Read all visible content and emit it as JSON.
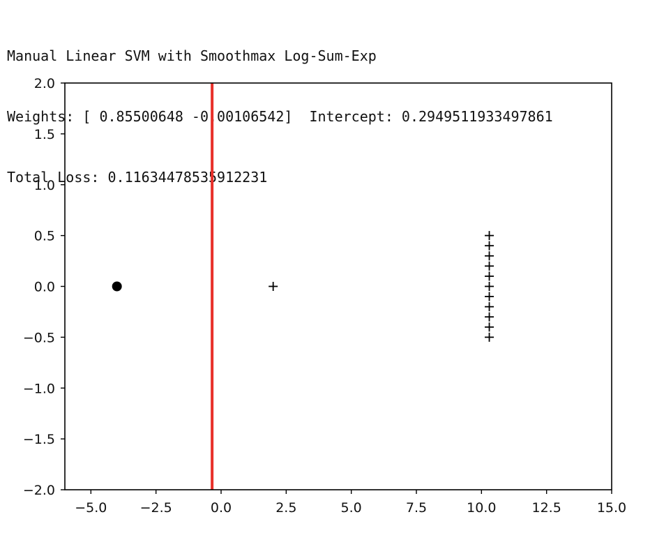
{
  "header": {
    "title": "Manual Linear SVM with Smoothmax Log-Sum-Exp",
    "weights_line": "Weights: [ 0.85500648 -0.00106542]  Intercept: 0.2949511933497861",
    "loss_line": "Total Loss: 0.11634478535912231"
  },
  "chart_data": {
    "type": "scatter",
    "title": "Manual Linear SVM with Smoothmax Log-Sum-Exp",
    "xlabel": "",
    "ylabel": "",
    "xlim": [
      -6,
      15
    ],
    "ylim": [
      -2,
      2
    ],
    "grid": false,
    "x_ticks": [
      -5.0,
      -2.5,
      0.0,
      2.5,
      5.0,
      7.5,
      10.0,
      12.5,
      15.0
    ],
    "x_tick_labels": [
      "−5.0",
      "−2.5",
      "0.0",
      "2.5",
      "5.0",
      "7.5",
      "10.0",
      "12.5",
      "15.0"
    ],
    "y_ticks": [
      -2.0,
      -1.5,
      -1.0,
      -0.5,
      0.0,
      0.5,
      1.0,
      1.5,
      2.0
    ],
    "y_tick_labels": [
      "−2.0",
      "−1.5",
      "−1.0",
      "−0.5",
      "0.0",
      "0.5",
      "1.0",
      "1.5",
      "2.0"
    ],
    "series": [
      {
        "marker": "circle",
        "color": "#000000",
        "points": [
          [
            -4.0,
            0.0
          ]
        ]
      },
      {
        "marker": "plus",
        "color": "#000000",
        "points": [
          [
            2.0,
            0.0
          ],
          [
            10.3,
            0.5
          ],
          [
            10.3,
            0.4
          ],
          [
            10.3,
            0.3
          ],
          [
            10.3,
            0.2
          ],
          [
            10.3,
            0.1
          ],
          [
            10.3,
            0.0
          ],
          [
            10.3,
            -0.1
          ],
          [
            10.3,
            -0.2
          ],
          [
            10.3,
            -0.3
          ],
          [
            10.3,
            -0.4
          ],
          [
            10.3,
            -0.5
          ]
        ]
      }
    ],
    "decision_boundary": {
      "x": -0.345,
      "color": "#e8302a"
    }
  }
}
